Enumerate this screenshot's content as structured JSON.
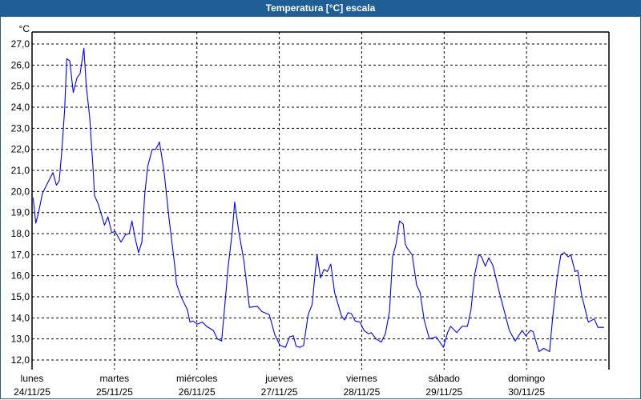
{
  "window": {
    "title": "Temperatura [°C] escala"
  },
  "chart_data": {
    "type": "line",
    "title": "Temperatura [°C] escala",
    "ylabel": "°C",
    "ylim": [
      12,
      27
    ],
    "yticks": [
      "12,0",
      "13,0",
      "14,0",
      "15,0",
      "16,0",
      "17,0",
      "18,0",
      "19,0",
      "20,0",
      "21,0",
      "22,0",
      "23,0",
      "24,0",
      "25,0",
      "26,0",
      "27,0"
    ],
    "xlim": [
      "2025-11-24T00:00",
      "2025-12-01T00:00"
    ],
    "xticks": [
      {
        "day": "lunes",
        "date": "24/11/25"
      },
      {
        "day": "martes",
        "date": "25/11/25"
      },
      {
        "day": "miércoles",
        "date": "26/11/25"
      },
      {
        "day": "jueves",
        "date": "27/11/25"
      },
      {
        "day": "viernes",
        "date": "28/11/25"
      },
      {
        "day": "sábado",
        "date": "29/11/25"
      },
      {
        "day": "domingo",
        "date": "30/11/25"
      }
    ],
    "grid": true,
    "line_color": "#0000ff",
    "series": [
      {
        "points": [
          [
            "2025-11-24T00:18",
            19.7
          ],
          [
            "2025-11-24T01:06",
            18.5
          ],
          [
            "2025-11-24T01:54",
            19.0
          ],
          [
            "2025-11-24T03:00",
            19.9
          ],
          [
            "2025-11-24T04:12",
            20.3
          ],
          [
            "2025-11-24T06:06",
            20.9
          ],
          [
            "2025-11-24T07:06",
            20.3
          ],
          [
            "2025-11-24T07:54",
            20.5
          ],
          [
            "2025-11-24T08:42",
            22.0
          ],
          [
            "2025-11-24T09:30",
            23.9
          ],
          [
            "2025-11-24T10:06",
            26.3
          ],
          [
            "2025-11-24T11:00",
            26.2
          ],
          [
            "2025-11-24T12:00",
            24.7
          ],
          [
            "2025-11-24T13:06",
            25.4
          ],
          [
            "2025-11-24T14:00",
            25.6
          ],
          [
            "2025-11-24T15:06",
            26.8
          ],
          [
            "2025-11-24T15:48",
            25.0
          ],
          [
            "2025-11-24T16:48",
            23.5
          ],
          [
            "2025-11-24T17:48",
            21.0
          ],
          [
            "2025-11-24T18:12",
            19.8
          ],
          [
            "2025-11-24T19:18",
            19.4
          ],
          [
            "2025-11-24T21:06",
            18.4
          ],
          [
            "2025-11-24T22:06",
            18.8
          ],
          [
            "2025-11-24T23:12",
            18.05
          ],
          [
            "2025-11-25T00:12",
            18.1
          ],
          [
            "2025-11-25T01:54",
            17.6
          ],
          [
            "2025-11-25T03:12",
            17.95
          ],
          [
            "2025-11-25T04:18",
            18.0
          ],
          [
            "2025-11-25T05:06",
            18.6
          ],
          [
            "2025-11-25T06:00",
            17.8
          ],
          [
            "2025-11-25T07:00",
            17.1
          ],
          [
            "2025-11-25T08:00",
            17.6
          ],
          [
            "2025-11-25T08:48",
            19.85
          ],
          [
            "2025-11-25T09:42",
            21.2
          ],
          [
            "2025-11-25T11:00",
            22.0
          ],
          [
            "2025-11-25T12:00",
            22.0
          ],
          [
            "2025-11-25T13:06",
            22.35
          ],
          [
            "2025-11-25T14:24",
            21.0
          ],
          [
            "2025-11-25T15:54",
            18.7
          ],
          [
            "2025-11-25T17:30",
            16.55
          ],
          [
            "2025-11-25T18:06",
            15.6
          ],
          [
            "2025-11-25T19:24",
            15.0
          ],
          [
            "2025-11-25T21:12",
            14.4
          ],
          [
            "2025-11-25T22:00",
            13.8
          ],
          [
            "2025-11-25T22:54",
            13.85
          ],
          [
            "2025-11-26T00:06",
            13.7
          ],
          [
            "2025-11-26T01:36",
            13.8
          ],
          [
            "2025-11-26T02:48",
            13.6
          ],
          [
            "2025-11-26T04:48",
            13.4
          ],
          [
            "2025-11-26T06:00",
            13.0
          ],
          [
            "2025-11-26T07:12",
            12.9
          ],
          [
            "2025-11-26T08:18",
            14.9
          ],
          [
            "2025-11-26T09:06",
            16.4
          ],
          [
            "2025-11-26T10:18",
            18.1
          ],
          [
            "2025-11-26T11:00",
            19.5
          ],
          [
            "2025-11-26T12:12",
            18.1
          ],
          [
            "2025-11-26T13:42",
            16.7
          ],
          [
            "2025-11-26T15:18",
            14.5
          ],
          [
            "2025-11-26T17:36",
            14.55
          ],
          [
            "2025-11-26T18:54",
            14.3
          ],
          [
            "2025-11-26T21:06",
            14.15
          ],
          [
            "2025-11-26T22:42",
            13.2
          ],
          [
            "2025-11-27T00:12",
            12.7
          ],
          [
            "2025-11-27T01:48",
            12.6
          ],
          [
            "2025-11-27T03:00",
            13.1
          ],
          [
            "2025-11-27T04:06",
            13.15
          ],
          [
            "2025-11-27T04:54",
            12.65
          ],
          [
            "2025-11-27T06:06",
            12.6
          ],
          [
            "2025-11-27T07:06",
            12.7
          ],
          [
            "2025-11-27T08:24",
            14.15
          ],
          [
            "2025-11-27T09:36",
            14.65
          ],
          [
            "2025-11-27T10:18",
            15.9
          ],
          [
            "2025-11-27T11:00",
            17.0
          ],
          [
            "2025-11-27T12:00",
            15.9
          ],
          [
            "2025-11-27T13:00",
            16.3
          ],
          [
            "2025-11-27T14:00",
            16.2
          ],
          [
            "2025-11-27T15:00",
            16.55
          ],
          [
            "2025-11-27T16:06",
            15.2
          ],
          [
            "2025-11-27T18:06",
            14.1
          ],
          [
            "2025-11-27T19:00",
            13.9
          ],
          [
            "2025-11-27T20:00",
            14.25
          ],
          [
            "2025-11-27T21:00",
            14.2
          ],
          [
            "2025-11-27T22:06",
            13.85
          ],
          [
            "2025-11-27T23:30",
            13.8
          ],
          [
            "2025-11-28T00:42",
            13.4
          ],
          [
            "2025-11-28T01:54",
            13.25
          ],
          [
            "2025-11-28T02:48",
            13.3
          ],
          [
            "2025-11-28T04:12",
            13.0
          ],
          [
            "2025-11-28T05:42",
            12.85
          ],
          [
            "2025-11-28T06:54",
            13.25
          ],
          [
            "2025-11-28T08:06",
            14.3
          ],
          [
            "2025-11-28T09:00",
            16.9
          ],
          [
            "2025-11-28T10:00",
            17.5
          ],
          [
            "2025-11-28T11:00",
            18.6
          ],
          [
            "2025-11-28T12:06",
            18.45
          ],
          [
            "2025-11-28T12:42",
            17.5
          ],
          [
            "2025-11-28T13:18",
            17.3
          ],
          [
            "2025-11-28T14:42",
            17.0
          ],
          [
            "2025-11-28T16:00",
            15.55
          ],
          [
            "2025-11-28T17:00",
            15.2
          ],
          [
            "2025-11-28T18:12",
            13.9
          ],
          [
            "2025-11-28T19:42",
            13.0
          ],
          [
            "2025-11-28T21:42",
            13.1
          ],
          [
            "2025-11-28T23:48",
            12.6
          ],
          [
            "2025-11-29T01:00",
            13.3
          ],
          [
            "2025-11-29T01:54",
            13.6
          ],
          [
            "2025-11-29T03:42",
            13.3
          ],
          [
            "2025-11-29T05:12",
            13.6
          ],
          [
            "2025-11-29T06:48",
            13.6
          ],
          [
            "2025-11-29T07:48",
            14.35
          ],
          [
            "2025-11-29T08:54",
            16.05
          ],
          [
            "2025-11-29T10:06",
            17.0
          ],
          [
            "2025-11-29T10:54",
            16.9
          ],
          [
            "2025-11-29T12:00",
            16.45
          ],
          [
            "2025-11-29T13:00",
            16.85
          ],
          [
            "2025-11-29T14:12",
            16.5
          ],
          [
            "2025-11-29T16:06",
            15.2
          ],
          [
            "2025-11-29T19:00",
            13.4
          ],
          [
            "2025-11-29T20:42",
            12.9
          ],
          [
            "2025-11-29T22:42",
            13.4
          ],
          [
            "2025-11-29T23:48",
            13.15
          ],
          [
            "2025-11-30T01:06",
            13.4
          ],
          [
            "2025-11-30T01:54",
            13.35
          ],
          [
            "2025-11-30T03:36",
            12.4
          ],
          [
            "2025-11-30T05:00",
            12.55
          ],
          [
            "2025-11-30T06:42",
            12.4
          ],
          [
            "2025-11-30T07:36",
            14.0
          ],
          [
            "2025-11-30T08:54",
            15.9
          ],
          [
            "2025-11-30T10:00",
            17.0
          ],
          [
            "2025-11-30T11:00",
            17.1
          ],
          [
            "2025-11-30T12:06",
            16.9
          ],
          [
            "2025-11-30T12:54",
            17.0
          ],
          [
            "2025-11-30T14:06",
            16.2
          ],
          [
            "2025-11-30T14:54",
            16.25
          ],
          [
            "2025-11-30T16:06",
            15.05
          ],
          [
            "2025-11-30T18:00",
            13.8
          ],
          [
            "2025-11-30T19:42",
            13.95
          ],
          [
            "2025-11-30T20:48",
            13.55
          ],
          [
            "2025-11-30T22:36",
            13.55
          ]
        ]
      }
    ]
  }
}
